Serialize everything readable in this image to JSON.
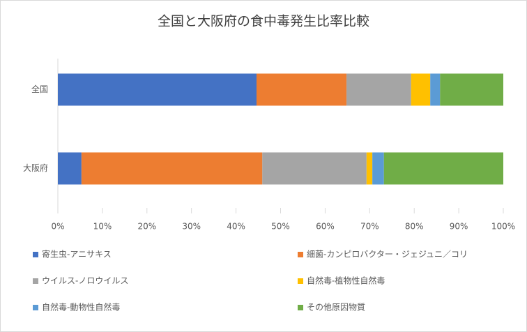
{
  "chart_data": {
    "type": "stacked_bar_horizontal",
    "title": "全国と大阪府の食中毒発生比率比較",
    "categories": [
      "全国",
      "大阪府"
    ],
    "series": [
      {
        "name": "寄生虫-アニサキス",
        "color": "#4472c4",
        "values": [
          44.6,
          5.3
        ]
      },
      {
        "name": "細菌-カンピロバクター・ジェジュニ／コリ",
        "color": "#ed7d31",
        "values": [
          20.2,
          40.6
        ]
      },
      {
        "name": "ウイルス-ノロウイルス",
        "color": "#a5a5a5",
        "values": [
          14.5,
          23.4
        ]
      },
      {
        "name": "自然毒-植物性自然毒",
        "color": "#ffc000",
        "values": [
          4.3,
          1.3
        ]
      },
      {
        "name": "自然毒-動物性自然毒",
        "color": "#5b9bd5",
        "values": [
          2.2,
          2.6
        ]
      },
      {
        "name": "その他原因物質",
        "color": "#70ad47",
        "values": [
          14.2,
          26.8
        ]
      }
    ],
    "xlim": [
      0,
      100
    ],
    "xticks": [
      {
        "value": 0,
        "label": "0%"
      },
      {
        "value": 10,
        "label": "10%"
      },
      {
        "value": 20,
        "label": "20%"
      },
      {
        "value": 30,
        "label": "30%"
      },
      {
        "value": 40,
        "label": "40%"
      },
      {
        "value": 50,
        "label": "50%"
      },
      {
        "value": 60,
        "label": "60%"
      },
      {
        "value": 70,
        "label": "70%"
      },
      {
        "value": 80,
        "label": "80%"
      },
      {
        "value": 90,
        "label": "90%"
      },
      {
        "value": 100,
        "label": "100%"
      }
    ],
    "grid": false
  }
}
